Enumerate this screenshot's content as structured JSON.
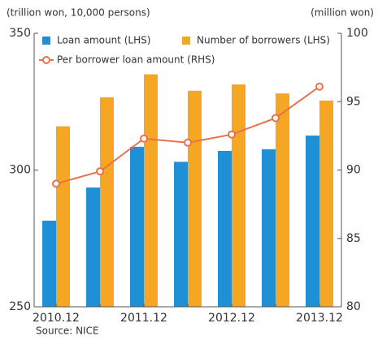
{
  "chart_data": {
    "type": "bar",
    "y_label": "(trillion won, 10,000 persons)",
    "y2_label": "(million won)",
    "source": "Source: NICE",
    "categories": [
      "2010.12",
      null,
      "2011.12",
      null,
      "2012.12",
      null,
      "2013.12"
    ],
    "series": [
      {
        "name": "Loan amount (LHS)",
        "color": "#1f8fd6",
        "type": "bar",
        "values": [
          281.5,
          293.6,
          308.5,
          303,
          307,
          307.6,
          312.6
        ]
      },
      {
        "name": "Number of borrowers (LHS)",
        "color": "#f5a623",
        "type": "bar",
        "values": [
          316,
          326.6,
          335,
          329,
          331.3,
          328,
          325.4
        ]
      },
      {
        "name": "Per borrower loan amount (RHS)",
        "color": "#e8734a",
        "type": "line",
        "axis": "y2",
        "values": [
          89.0,
          89.9,
          92.3,
          92.0,
          92.6,
          93.8,
          96.1
        ]
      }
    ],
    "ylim": [
      250,
      350
    ],
    "yticks": [
      250,
      300,
      350
    ],
    "y2lim": [
      80,
      100
    ],
    "y2ticks": [
      80,
      85,
      90,
      95,
      100
    ]
  }
}
